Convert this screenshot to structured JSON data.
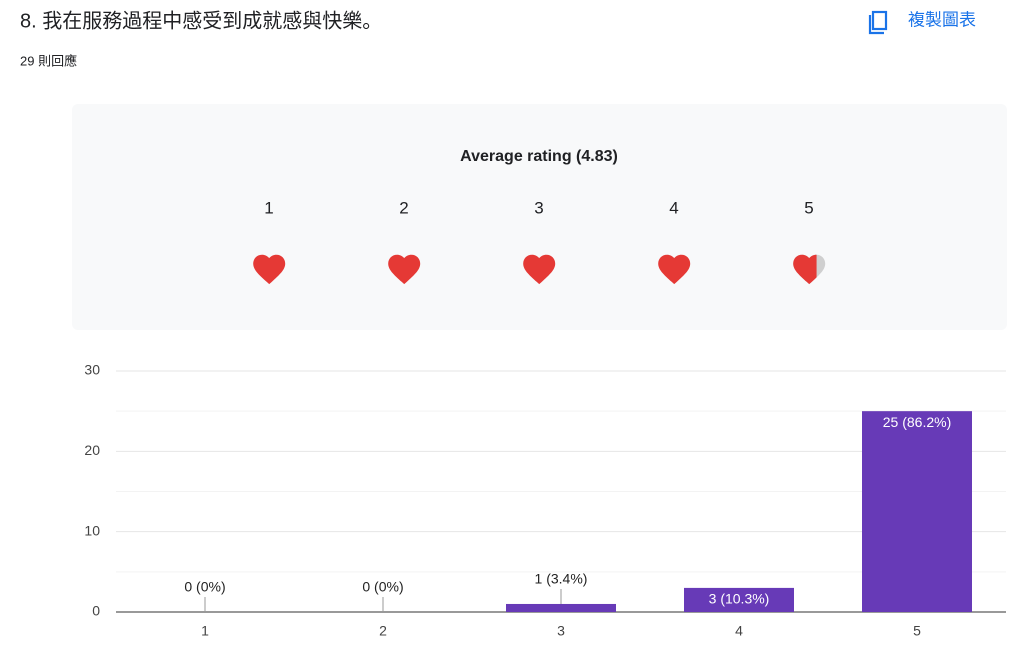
{
  "header": {
    "question": "8. 我在服務過程中感受到成就感與快樂。",
    "responses": "29 則回應",
    "copy_button": "複製圖表"
  },
  "rating": {
    "title": "Average rating (4.83)",
    "scale": [
      "1",
      "2",
      "3",
      "4",
      "5"
    ]
  },
  "chart_data": {
    "type": "bar",
    "categories": [
      "1",
      "2",
      "3",
      "4",
      "5"
    ],
    "values": [
      0,
      0,
      1,
      3,
      25
    ],
    "value_labels": [
      "0 (0%)",
      "0 (0%)",
      "1 (3.4%)",
      "3 (10.3%)",
      "25 (86.2%)"
    ],
    "color": "#673ab7",
    "ylim": [
      0,
      30
    ],
    "yticks": [
      0,
      10,
      20,
      30
    ],
    "minor_yticks": [
      5,
      15,
      25
    ],
    "grid": true
  }
}
